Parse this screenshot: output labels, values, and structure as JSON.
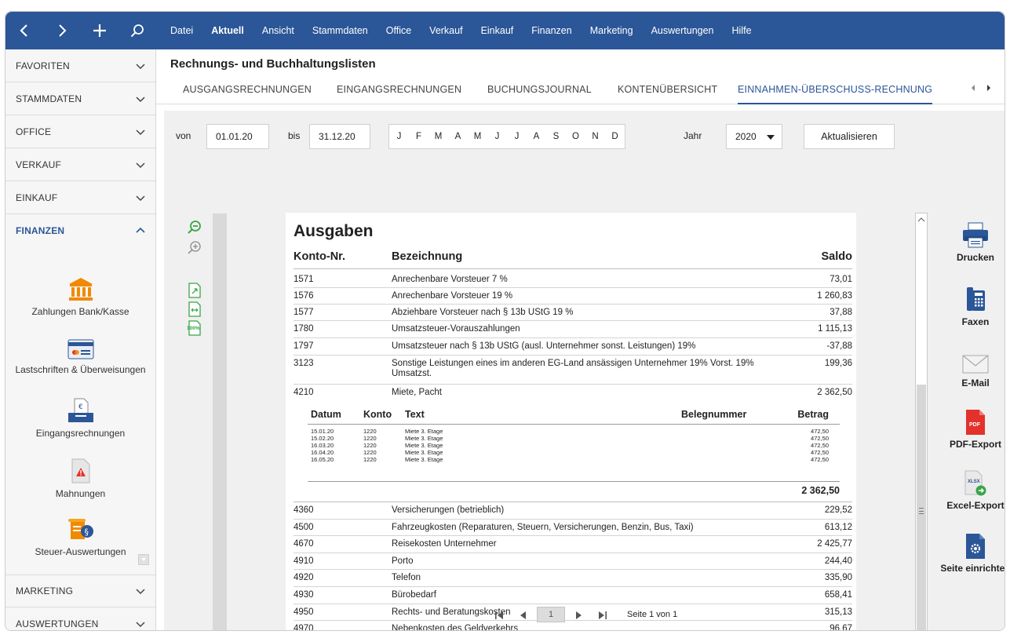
{
  "nav": {
    "menu": [
      "Datei",
      "Aktuell",
      "Ansicht",
      "Stammdaten",
      "Office",
      "Verkauf",
      "Einkauf",
      "Finanzen",
      "Marketing",
      "Auswertungen",
      "Hilfe"
    ],
    "active_menu": "Aktuell"
  },
  "sidebar": {
    "sections": {
      "favoriten": "FAVORITEN",
      "stammdaten": "STAMMDATEN",
      "office": "OFFICE",
      "verkauf": "VERKAUF",
      "einkauf": "EINKAUF",
      "finanzen": "FINANZEN",
      "marketing": "MARKETING",
      "auswertungen": "AUSWERTUNGEN"
    },
    "finanzen_items": {
      "bank": "Zahlungen Bank/Kasse",
      "lastschriften": "Lastschriften & Überweisungen",
      "eingang": "Eingangsrechnungen",
      "mahnungen": "Mahnungen",
      "steuer": "Steuer-Auswertungen"
    }
  },
  "page": {
    "title": "Rechnungs- und Buchhaltungslisten",
    "tabs": {
      "t0": "AUSGANGSRECHNUNGEN",
      "t1": "EINGANGSRECHNUNGEN",
      "t2": "BUCHUNGSJOURNAL",
      "t3": "KONTENÜBERSICHT",
      "t4": "EINNAHMEN-ÜBERSCHUSS-RECHNUNG"
    },
    "active_tab": "EINNAHMEN-ÜBERSCHUSS-RECHNUNG"
  },
  "filter": {
    "von_label": "von",
    "von_value": "01.01.20",
    "bis_label": "bis",
    "bis_value": "31.12.20",
    "months": [
      "J",
      "F",
      "M",
      "A",
      "M",
      "J",
      "J",
      "A",
      "S",
      "O",
      "N",
      "D"
    ],
    "jahr_label": "Jahr",
    "jahr_value": "2020",
    "refresh_label": "Aktualisieren"
  },
  "report": {
    "title": "Ausgaben",
    "col_konto": "Konto-Nr.",
    "col_bez": "Bezeichnung",
    "col_saldo": "Saldo",
    "rows": [
      {
        "konto": "1571",
        "bez": "Anrechenbare Vorsteuer 7 %",
        "saldo": "73,01"
      },
      {
        "konto": "1576",
        "bez": "Anrechenbare Vorsteuer 19 %",
        "saldo": "1 260,83"
      },
      {
        "konto": "1577",
        "bez": "Abziehbare Vorsteuer nach § 13b UStG 19 %",
        "saldo": "37,88"
      },
      {
        "konto": "1780",
        "bez": "Umsatzsteuer-Vorauszahlungen",
        "saldo": "1 115,13"
      },
      {
        "konto": "1797",
        "bez": "Umsatzsteuer nach § 13b UStG (ausl. Unternehmer sonst. Leistungen) 19%",
        "saldo": "-37,88"
      },
      {
        "konto": "3123",
        "bez": "Sonstige Leistungen eines im anderen EG-Land ansässigen Unternehmer 19% Vorst. 19% Umsatzst.",
        "saldo": "199,36"
      },
      {
        "konto": "4210",
        "bez": "Miete, Pacht",
        "saldo": "2 362,50"
      },
      {
        "konto": "4360",
        "bez": "Versicherungen (betrieblich)",
        "saldo": "229,52"
      },
      {
        "konto": "4500",
        "bez": "Fahrzeugkosten (Reparaturen, Steuern, Versicherungen, Benzin, Bus, Taxi)",
        "saldo": "613,12"
      },
      {
        "konto": "4670",
        "bez": "Reisekosten Unternehmer",
        "saldo": "2 425,77"
      },
      {
        "konto": "4910",
        "bez": "Porto",
        "saldo": "244,40"
      },
      {
        "konto": "4920",
        "bez": "Telefon",
        "saldo": "335,90"
      },
      {
        "konto": "4930",
        "bez": "Bürobedarf",
        "saldo": "658,41"
      },
      {
        "konto": "4950",
        "bez": "Rechts- und Beratungskosten",
        "saldo": "315,13"
      },
      {
        "konto": "4970",
        "bez": "Nebenkosten des Geldverkehrs",
        "saldo": "96,67"
      }
    ],
    "detail": {
      "col_datum": "Datum",
      "col_konto": "Konto",
      "col_text": "Text",
      "col_beleg": "Belegnummer",
      "col_betrag": "Betrag",
      "rows": [
        {
          "datum": "15.01.20",
          "konto": "1220",
          "text": "Miete 3. Etage",
          "betrag": "472,50"
        },
        {
          "datum": "15.02.20",
          "konto": "1220",
          "text": "Miete 3. Etage",
          "betrag": "472,50"
        },
        {
          "datum": "16.03.20",
          "konto": "1220",
          "text": "Miete 3. Etage",
          "betrag": "472,50"
        },
        {
          "datum": "16.04.20",
          "konto": "1220",
          "text": "Miete 3. Etage",
          "betrag": "472,50"
        },
        {
          "datum": "16.05.20",
          "konto": "1220",
          "text": "Miete 3. Etage",
          "betrag": "472,50"
        }
      ],
      "total": "2 362,50"
    }
  },
  "pager": {
    "page_number": "1",
    "info": "Seite 1 von 1"
  },
  "zoom": {
    "fit_page_label": "100%"
  },
  "actions": {
    "print": "Drucken",
    "fax": "Faxen",
    "email": "E-Mail",
    "pdf": "PDF-Export",
    "pdf_badge": "PDF",
    "excel": "Excel-Export",
    "excel_badge": "XLSX",
    "setup": "Seite einrichten"
  },
  "colors": {
    "brand": "#2b5697",
    "accent_green": "#3aa547",
    "pdf_red": "#e2322b",
    "icon_orange": "#f08a00"
  }
}
